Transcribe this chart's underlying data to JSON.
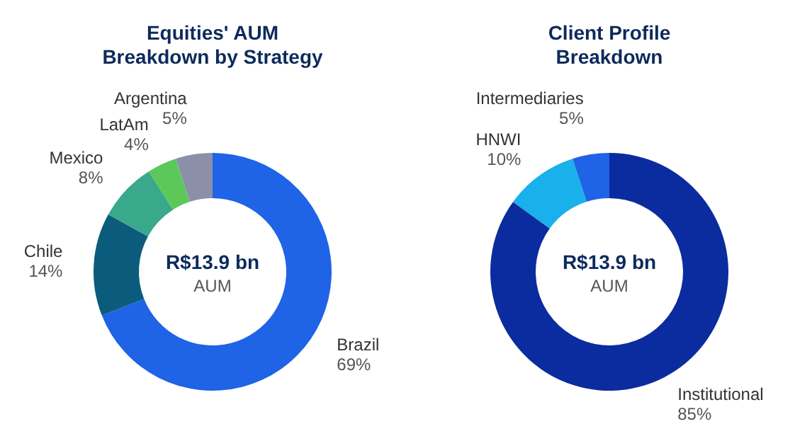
{
  "chart_data": [
    {
      "type": "donut",
      "title": "Equities' AUM\nBreakdown by Strategy",
      "categories": [
        "Brazil",
        "Chile",
        "Mexico",
        "LatAm",
        "Argentina"
      ],
      "values": [
        69,
        14,
        8,
        4,
        5
      ],
      "value_labels": [
        "69%",
        "14%",
        "8%",
        "4%",
        "5%"
      ],
      "colors": [
        "#1f63e6",
        "#0b5b7c",
        "#3aa88a",
        "#5cc85a",
        "#8c8fa8"
      ],
      "annotations": [
        "R$13.9 bn",
        "AUM"
      ]
    },
    {
      "type": "donut",
      "title": "Client Profile\nBreakdown",
      "categories": [
        "Institutional",
        "HNWI",
        "Intermediaries"
      ],
      "values": [
        85,
        10,
        5
      ],
      "value_labels": [
        "85%",
        "10%",
        "5%"
      ],
      "colors": [
        "#0b2c9e",
        "#19b0ec",
        "#1f63e6"
      ],
      "annotations": [
        "R$13.9 bn",
        "AUM"
      ]
    }
  ]
}
